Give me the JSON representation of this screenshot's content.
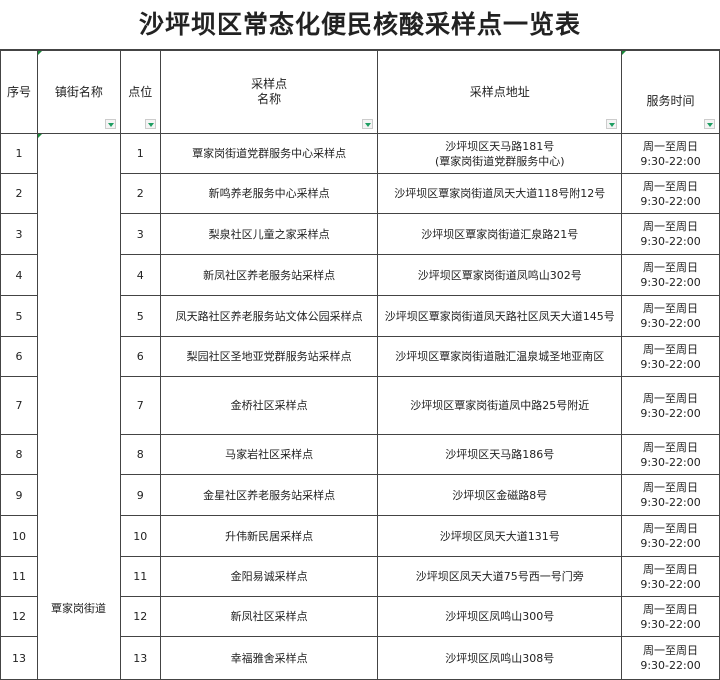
{
  "title": "沙坪坝区常态化便民核酸采样点一览表",
  "headers": {
    "seq": "序号",
    "town": "镇街名称",
    "point": "点位",
    "name_line1": "采样点",
    "name_line2": "名称",
    "address": "采样点地址",
    "hours": "服务时间"
  },
  "town_name": "覃家岗街道",
  "rows": [
    {
      "seq": "1",
      "point": "1",
      "name": "覃家岗街道党群服务中心采样点",
      "address": "沙坪坝区天马路181号",
      "address2": "(覃家岗街道党群服务中心)",
      "hours1": "周一至周日",
      "hours2": "9:30-22:00"
    },
    {
      "seq": "2",
      "point": "2",
      "name": "新鸣养老服务中心采样点",
      "address": "沙坪坝区覃家岗街道凤天大道118号附12号",
      "address2": "",
      "hours1": "周一至周日",
      "hours2": "9:30-22:00"
    },
    {
      "seq": "3",
      "point": "3",
      "name": "梨泉社区儿童之家采样点",
      "address": "沙坪坝区覃家岗街道汇泉路21号",
      "address2": "",
      "hours1": "周一至周日",
      "hours2": "9:30-22:00"
    },
    {
      "seq": "4",
      "point": "4",
      "name": "新凤社区养老服务站采样点",
      "address": "沙坪坝区覃家岗街道凤鸣山302号",
      "address2": "",
      "hours1": "周一至周日",
      "hours2": "9:30-22:00"
    },
    {
      "seq": "5",
      "point": "5",
      "name": "凤天路社区养老服务站文体公园采样点",
      "address": "沙坪坝区覃家岗街道凤天路社区凤天大道145号",
      "address2": "",
      "hours1": "周一至周日",
      "hours2": "9:30-22:00"
    },
    {
      "seq": "6",
      "point": "6",
      "name": "梨园社区圣地亚党群服务站采样点",
      "address": "沙坪坝区覃家岗街道融汇温泉城圣地亚南区",
      "address2": "",
      "hours1": "周一至周日",
      "hours2": "9:30-22:00"
    },
    {
      "seq": "7",
      "point": "7",
      "name": "金桥社区采样点",
      "address": "沙坪坝区覃家岗街道凤中路25号附近",
      "address2": "",
      "hours1": "周一至周日",
      "hours2": "9:30-22:00"
    },
    {
      "seq": "8",
      "point": "8",
      "name": "马家岩社区采样点",
      "address": "沙坪坝区天马路186号",
      "address2": "",
      "hours1": "周一至周日",
      "hours2": "9:30-22:00"
    },
    {
      "seq": "9",
      "point": "9",
      "name": "金星社区养老服务站采样点",
      "address": "沙坪坝区金磁路8号",
      "address2": "",
      "hours1": "周一至周日",
      "hours2": "9:30-22:00"
    },
    {
      "seq": "10",
      "point": "10",
      "name": "升伟新民居采样点",
      "address": "沙坪坝区凤天大道131号",
      "address2": "",
      "hours1": "周一至周日",
      "hours2": "9:30-22:00"
    },
    {
      "seq": "11",
      "point": "11",
      "name": "金阳易诚采样点",
      "address": "沙坪坝区凤天大道75号西一号门旁",
      "address2": "",
      "hours1": "周一至周日",
      "hours2": "9:30-22:00"
    },
    {
      "seq": "12",
      "point": "12",
      "name": "新凤社区采样点",
      "address": "沙坪坝区凤鸣山300号",
      "address2": "",
      "hours1": "周一至周日",
      "hours2": "9:30-22:00"
    },
    {
      "seq": "13",
      "point": "13",
      "name": "幸福雅舍采样点",
      "address": "沙坪坝区凤鸣山308号",
      "address2": "",
      "hours1": "周一至周日",
      "hours2": "9:30-22:00"
    }
  ]
}
